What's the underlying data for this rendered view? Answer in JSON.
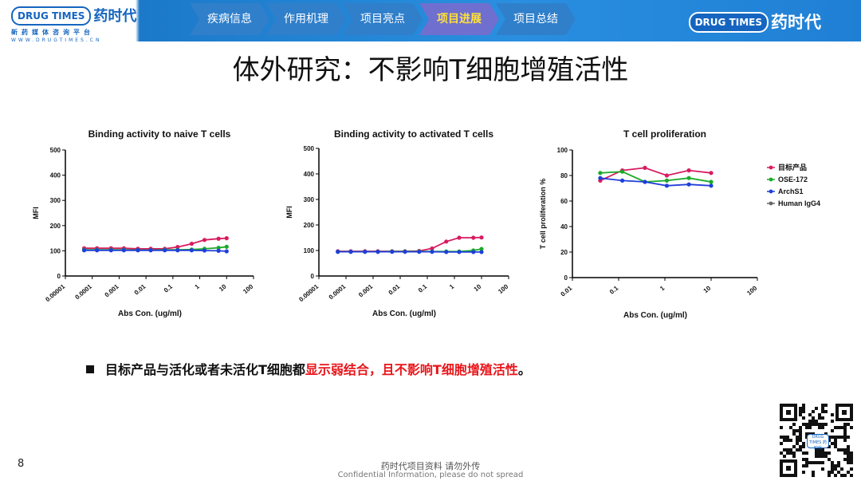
{
  "header": {
    "logo_badge": "DRUG TIMES",
    "logo_cn": "药时代",
    "logo_sub": "新药媒体咨询平台",
    "logo_url": "WWW.DRUGTIMES.CN",
    "nav": [
      {
        "label": "疾病信息",
        "active": false
      },
      {
        "label": "作用机理",
        "active": false
      },
      {
        "label": "项目亮点",
        "active": false
      },
      {
        "label": "项目进展",
        "active": true
      },
      {
        "label": "项目总结",
        "active": false
      }
    ],
    "right_badge": "DRUG TIMES",
    "right_cn": "药时代"
  },
  "title": "体外研究：不影响T细胞增殖活性",
  "chart_data": [
    {
      "type": "line",
      "title": "Binding activity to naive T cells",
      "xlabel": "Abs Con. (ug/ml)",
      "ylabel": "MFI",
      "xscale": "log",
      "xlim": [
        1e-05,
        100
      ],
      "ylim": [
        0,
        500
      ],
      "xticks": [
        "0.00001",
        "0.0001",
        "0.001",
        "0.01",
        "0.1",
        "1",
        "10",
        "100"
      ],
      "yticks": [
        "0",
        "100",
        "200",
        "300",
        "400",
        "500"
      ],
      "series": [
        {
          "color": "#d81b60",
          "x": [
            5e-05,
            0.00015,
            0.0005,
            0.0015,
            0.005,
            0.015,
            0.05,
            0.15,
            0.5,
            1.5,
            5,
            10
          ],
          "y": [
            110,
            110,
            110,
            110,
            108,
            108,
            108,
            115,
            128,
            143,
            148,
            150
          ]
        },
        {
          "color": "#1aaa2a",
          "x": [
            5e-05,
            0.00015,
            0.0005,
            0.0015,
            0.005,
            0.015,
            0.05,
            0.15,
            0.5,
            1.5,
            5,
            10
          ],
          "y": [
            104,
            104,
            104,
            104,
            103,
            103,
            104,
            104,
            105,
            108,
            112,
            116
          ]
        },
        {
          "color": "#1f3fd9",
          "x": [
            5e-05,
            0.00015,
            0.0005,
            0.0015,
            0.005,
            0.015,
            0.05,
            0.15,
            0.5,
            1.5,
            5,
            10
          ],
          "y": [
            102,
            102,
            102,
            102,
            102,
            102,
            102,
            102,
            102,
            101,
            100,
            98
          ]
        }
      ]
    },
    {
      "type": "line",
      "title": "Binding activity to activated T cells",
      "xlabel": "Abs Con. (ug/ml)",
      "ylabel": "MFI",
      "xscale": "log",
      "xlim": [
        1e-05,
        100
      ],
      "ylim": [
        0,
        500
      ],
      "xticks": [
        "0.00001",
        "0.0001",
        "0.001",
        "0.01",
        "0.1",
        "1",
        "10",
        "100"
      ],
      "yticks": [
        "0",
        "100",
        "200",
        "300",
        "400",
        "500"
      ],
      "series": [
        {
          "color": "#d81b60",
          "x": [
            5e-05,
            0.00015,
            0.0005,
            0.0015,
            0.005,
            0.015,
            0.05,
            0.15,
            0.5,
            1.5,
            5,
            10
          ],
          "y": [
            97,
            97,
            97,
            97,
            97,
            97,
            98,
            108,
            135,
            150,
            150,
            151
          ]
        },
        {
          "color": "#1aaa2a",
          "x": [
            5e-05,
            0.00015,
            0.0005,
            0.0015,
            0.005,
            0.015,
            0.05,
            0.15,
            0.5,
            1.5,
            5,
            10
          ],
          "y": [
            95,
            95,
            95,
            95,
            96,
            96,
            96,
            96,
            96,
            96,
            100,
            106
          ]
        },
        {
          "color": "#1f3fd9",
          "x": [
            5e-05,
            0.00015,
            0.0005,
            0.0015,
            0.005,
            0.015,
            0.05,
            0.15,
            0.5,
            1.5,
            5,
            10
          ],
          "y": [
            95,
            95,
            95,
            95,
            95,
            95,
            95,
            95,
            94,
            94,
            94,
            94
          ]
        }
      ]
    },
    {
      "type": "line",
      "title": "T cell proliferation",
      "xlabel": "Abs Con. (ug/ml)",
      "ylabel": "T cell proliferation %",
      "xscale": "log",
      "xlim": [
        0.01,
        100
      ],
      "ylim": [
        0,
        100
      ],
      "xticks": [
        "0.01",
        "0.1",
        "1",
        "10",
        "100"
      ],
      "yticks": [
        "0",
        "20",
        "40",
        "60",
        "80",
        "100"
      ],
      "legend_position": "right",
      "series": [
        {
          "name": "目标产品",
          "color": "#d81b60",
          "x": [
            0.04,
            0.12,
            0.37,
            1.1,
            3.3,
            10
          ],
          "y": [
            76,
            84,
            86,
            80,
            84,
            82
          ]
        },
        {
          "name": "OSE-172",
          "color": "#1aaa2a",
          "x": [
            0.04,
            0.12,
            0.37,
            1.1,
            3.3,
            10
          ],
          "y": [
            82,
            83,
            75,
            76,
            78,
            75
          ]
        },
        {
          "name": "ArchS1",
          "color": "#1f3fd9",
          "x": [
            0.04,
            0.12,
            0.37,
            1.1,
            3.3,
            10
          ],
          "y": [
            78,
            76,
            75,
            72,
            73,
            72
          ]
        },
        {
          "name": "Human IgG4",
          "color": "#666666",
          "x": [],
          "y": []
        }
      ]
    }
  ],
  "bullet": {
    "normal": "目标产品与活化或者未活化T细胞都",
    "highlight": "显示弱结合，且不影响T细胞增殖活性",
    "end": "。"
  },
  "page_number": "8",
  "footer": {
    "line1": "药时代项目资料 请勿外传",
    "line2": "Confidential Information, please do not spread"
  },
  "qr_label": "DRUG TIMES 药时代"
}
